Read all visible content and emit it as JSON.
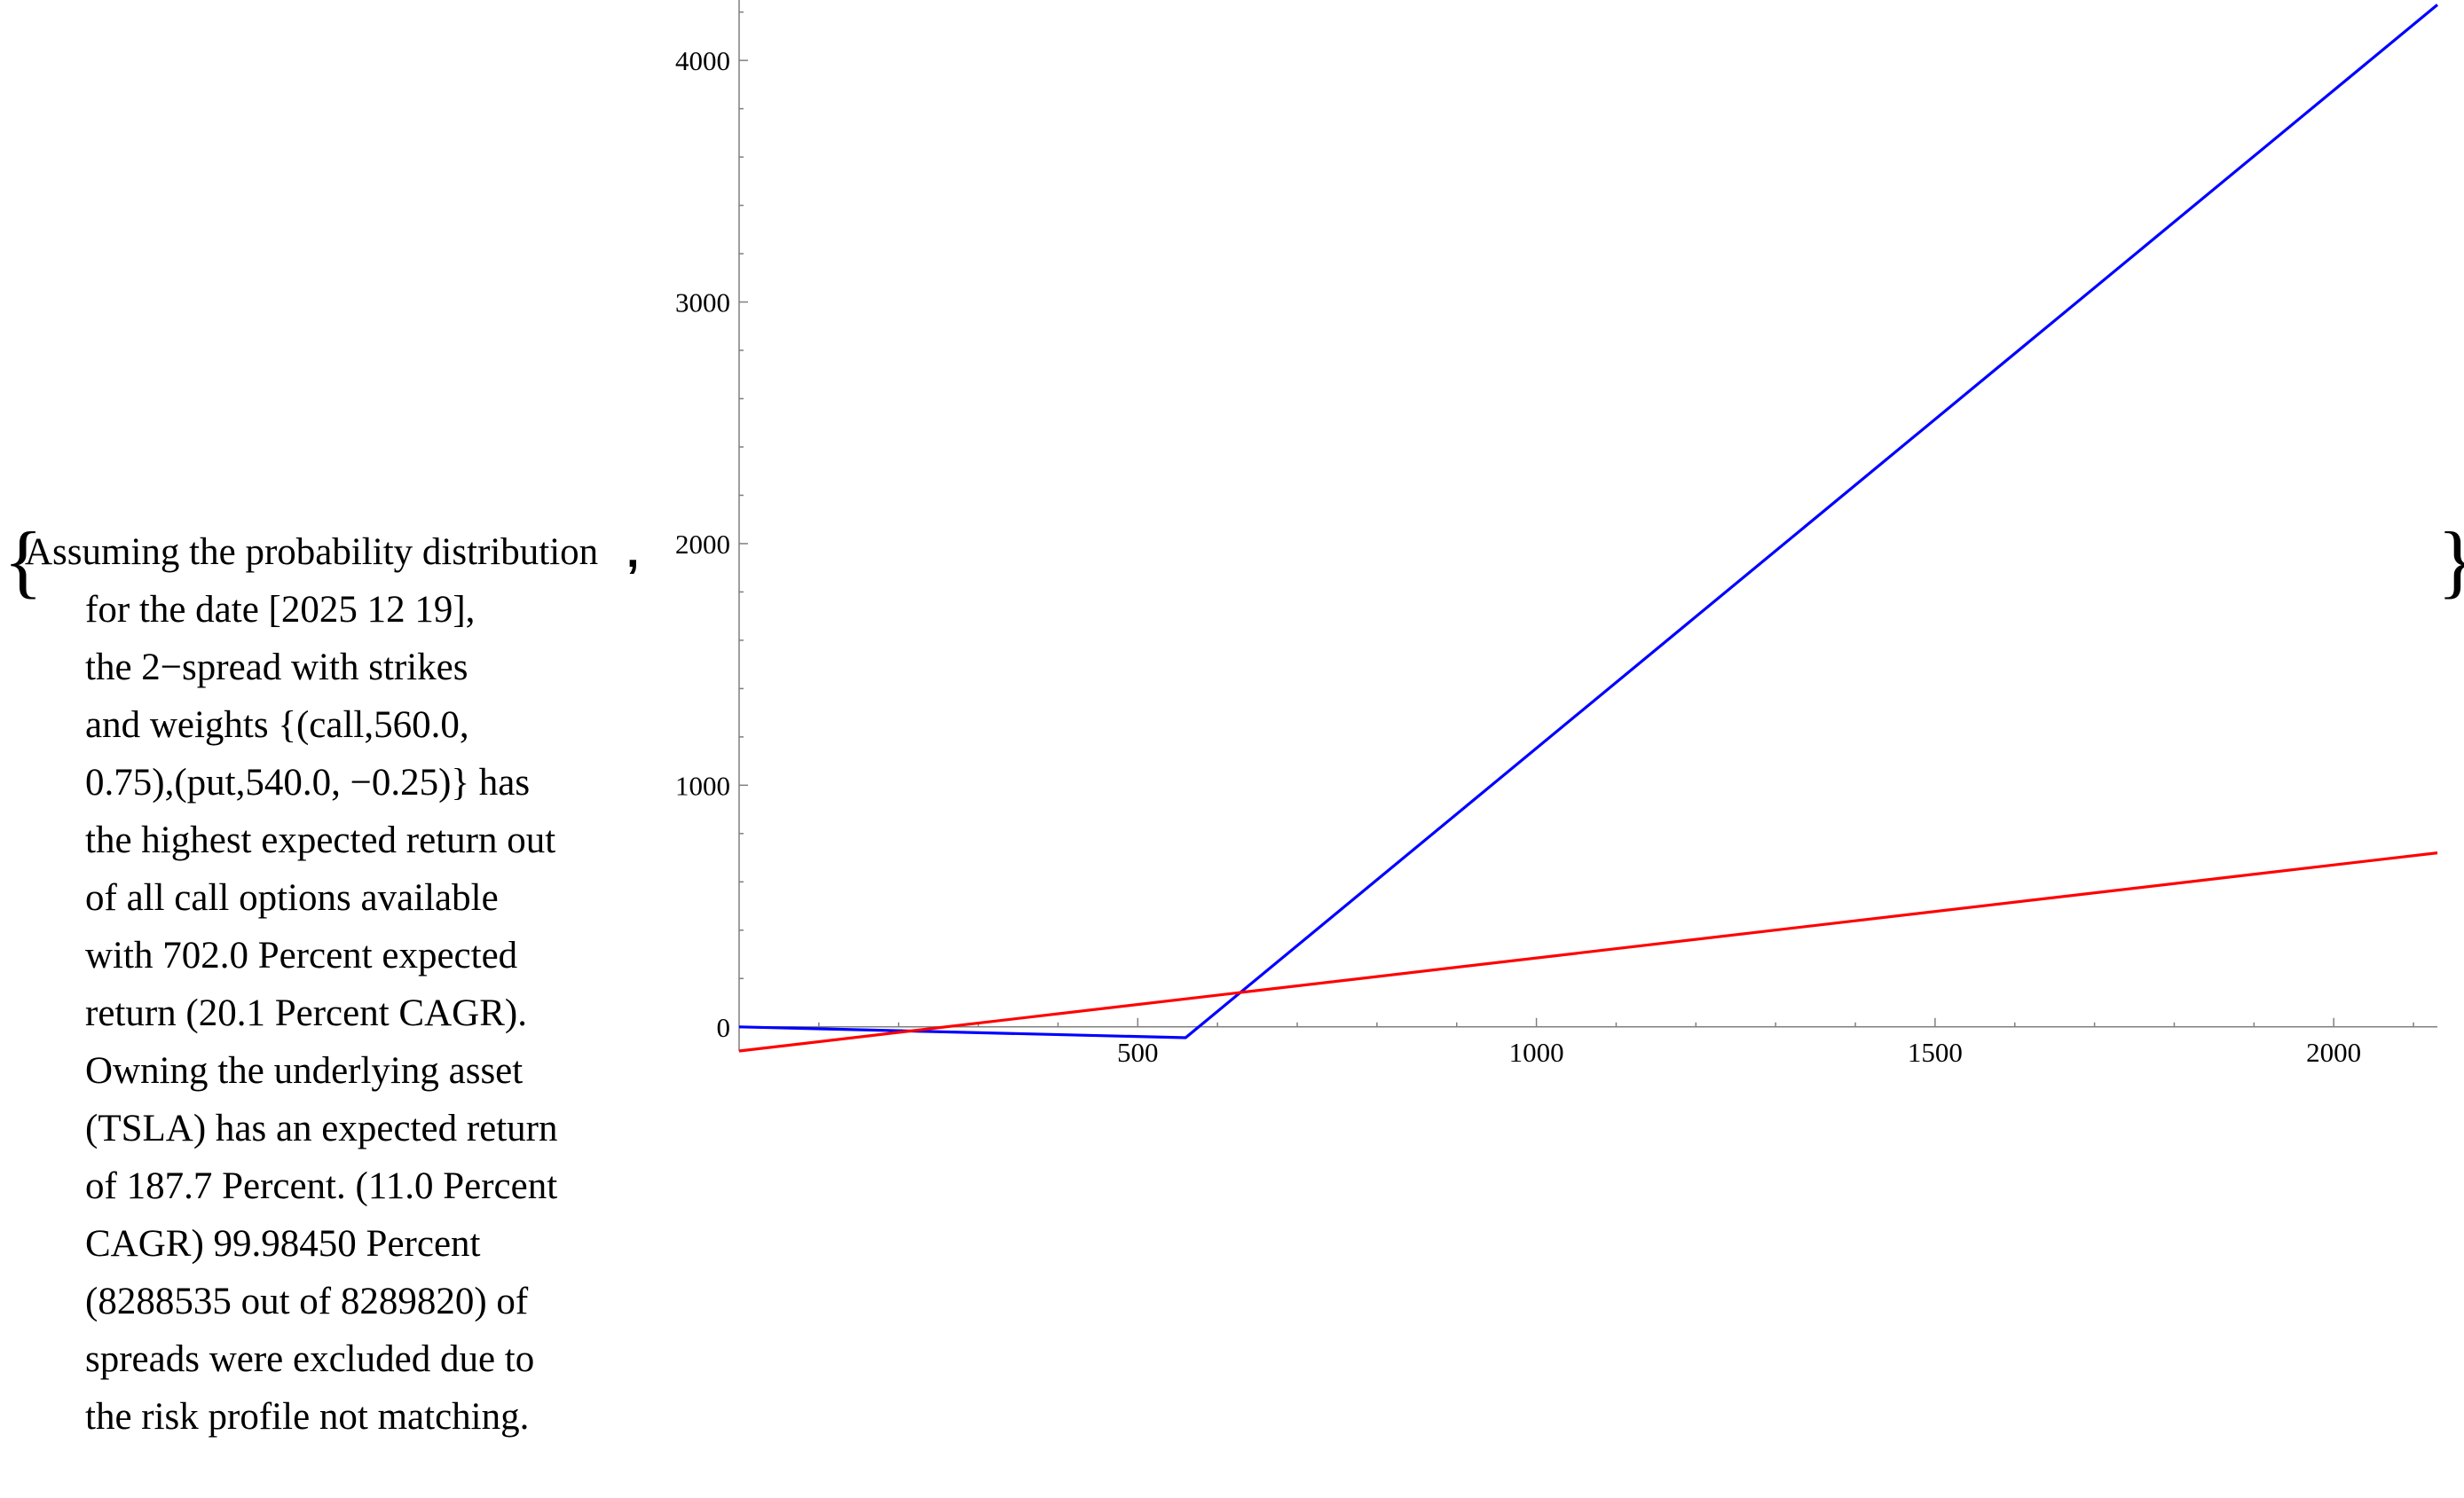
{
  "description": {
    "lines": [
      "Assuming the probability distribution",
      "for the date [2025 12 19],",
      "the 2−spread with strikes",
      "and weights {(call,560.0,",
      "0.75),(put,540.0, −0.25)} has",
      "the highest expected return out",
      "of all call options available",
      "with 702.0 Percent expected",
      "return (20.1 Percent CAGR).",
      "Owning the underlying asset",
      "(TSLA) has an expected return",
      "of 187.7 Percent. (11.0 Percent",
      "CAGR) 99.98450 Percent",
      "(8288535 out of 8289820) of",
      "spreads were excluded due to",
      "the risk profile not matching."
    ],
    "open_brace": "{",
    "close_brace": "}",
    "separator": ","
  },
  "chart_data": {
    "type": "line",
    "title": "",
    "xlabel": "",
    "ylabel": "",
    "xlim": [
      0,
      2130
    ],
    "ylim": [
      -100,
      4250
    ],
    "x_ticks": [
      500,
      1000,
      1500,
      2000
    ],
    "x_tick_labels": [
      "500",
      "1000",
      "1500",
      "2000"
    ],
    "y_ticks": [
      0,
      1000,
      2000,
      3000,
      4000
    ],
    "y_tick_labels": [
      "0",
      "1000",
      "2000",
      "3000",
      "4000"
    ],
    "grid": false,
    "series": [
      {
        "color": "#0000ff",
        "points": [
          [
            0,
            0
          ],
          [
            560,
            -45
          ],
          [
            2130,
            4230
          ]
        ]
      },
      {
        "color": "#ff0000",
        "points": [
          [
            0,
            -100
          ],
          [
            2130,
            720
          ]
        ]
      }
    ]
  }
}
